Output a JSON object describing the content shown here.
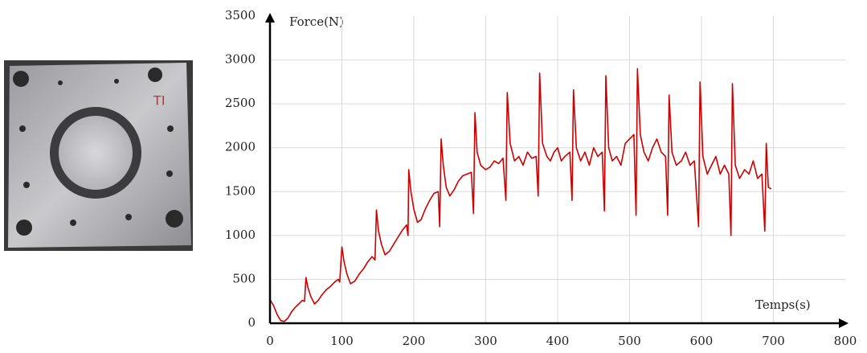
{
  "photo_label": "TI",
  "chart_data": {
    "type": "line",
    "y_label": "Force(N)",
    "x_label": "Temps(s)",
    "color": "#cc0000",
    "grid": true,
    "xlim": [
      0,
      800
    ],
    "xticks": [
      0,
      100,
      200,
      300,
      400,
      500,
      600,
      700,
      800
    ],
    "ylim": [
      0,
      3500
    ],
    "yticks": [
      0,
      500,
      1000,
      1500,
      2000,
      2500,
      3000,
      3500
    ],
    "x": [
      0,
      5,
      10,
      15,
      20,
      25,
      30,
      35,
      40,
      45,
      48,
      50,
      53,
      57,
      62,
      67,
      72,
      78,
      84,
      90,
      95,
      97,
      100,
      103,
      107,
      112,
      118,
      124,
      130,
      136,
      142,
      146,
      148,
      151,
      155,
      160,
      166,
      172,
      178,
      184,
      190,
      192,
      193,
      196,
      200,
      205,
      210,
      216,
      222,
      228,
      234,
      236,
      238,
      241,
      245,
      250,
      256,
      262,
      268,
      274,
      280,
      283,
      285,
      288,
      293,
      300,
      306,
      312,
      318,
      324,
      328,
      330,
      334,
      340,
      346,
      352,
      358,
      364,
      370,
      373,
      375,
      379,
      385,
      390,
      395,
      400,
      405,
      410,
      417,
      420,
      422,
      426,
      432,
      438,
      444,
      450,
      456,
      462,
      465,
      467,
      471,
      476,
      482,
      488,
      494,
      500,
      506,
      509,
      511,
      515,
      520,
      526,
      532,
      538,
      544,
      550,
      553,
      555,
      559,
      565,
      572,
      578,
      584,
      590,
      596,
      598,
      602,
      608,
      614,
      620,
      626,
      632,
      638,
      641,
      643,
      647,
      653,
      660,
      666,
      672,
      678,
      684,
      688,
      690,
      693,
      697
    ],
    "values": [
      270,
      200,
      100,
      30,
      20,
      60,
      130,
      180,
      220,
      260,
      250,
      520,
      400,
      300,
      220,
      260,
      320,
      380,
      420,
      470,
      500,
      470,
      870,
      700,
      560,
      450,
      480,
      560,
      620,
      700,
      760,
      720,
      1290,
      1050,
      900,
      780,
      820,
      900,
      980,
      1060,
      1120,
      1000,
      1750,
      1500,
      1300,
      1150,
      1180,
      1300,
      1400,
      1480,
      1500,
      1100,
      2100,
      1800,
      1550,
      1450,
      1520,
      1620,
      1680,
      1700,
      1720,
      1250,
      2400,
      1950,
      1800,
      1750,
      1780,
      1850,
      1820,
      1880,
      1400,
      2630,
      2050,
      1850,
      1900,
      1800,
      1950,
      1880,
      1900,
      1450,
      2850,
      2050,
      1900,
      1850,
      1950,
      2000,
      1850,
      1900,
      1950,
      1400,
      2660,
      2000,
      1850,
      1950,
      1800,
      2000,
      1900,
      1950,
      1280,
      2820,
      2000,
      1850,
      1900,
      1800,
      2050,
      2100,
      2150,
      1230,
      2900,
      2150,
      1950,
      1850,
      2000,
      2100,
      1950,
      1900,
      1230,
      2600,
      1950,
      1800,
      1850,
      1950,
      1800,
      1850,
      1100,
      2750,
      1900,
      1700,
      1800,
      1900,
      1700,
      1800,
      1700,
      1000,
      2730,
      1800,
      1650,
      1750,
      1700,
      1850,
      1650,
      1700,
      1050,
      2050,
      1550,
      1530
    ]
  }
}
